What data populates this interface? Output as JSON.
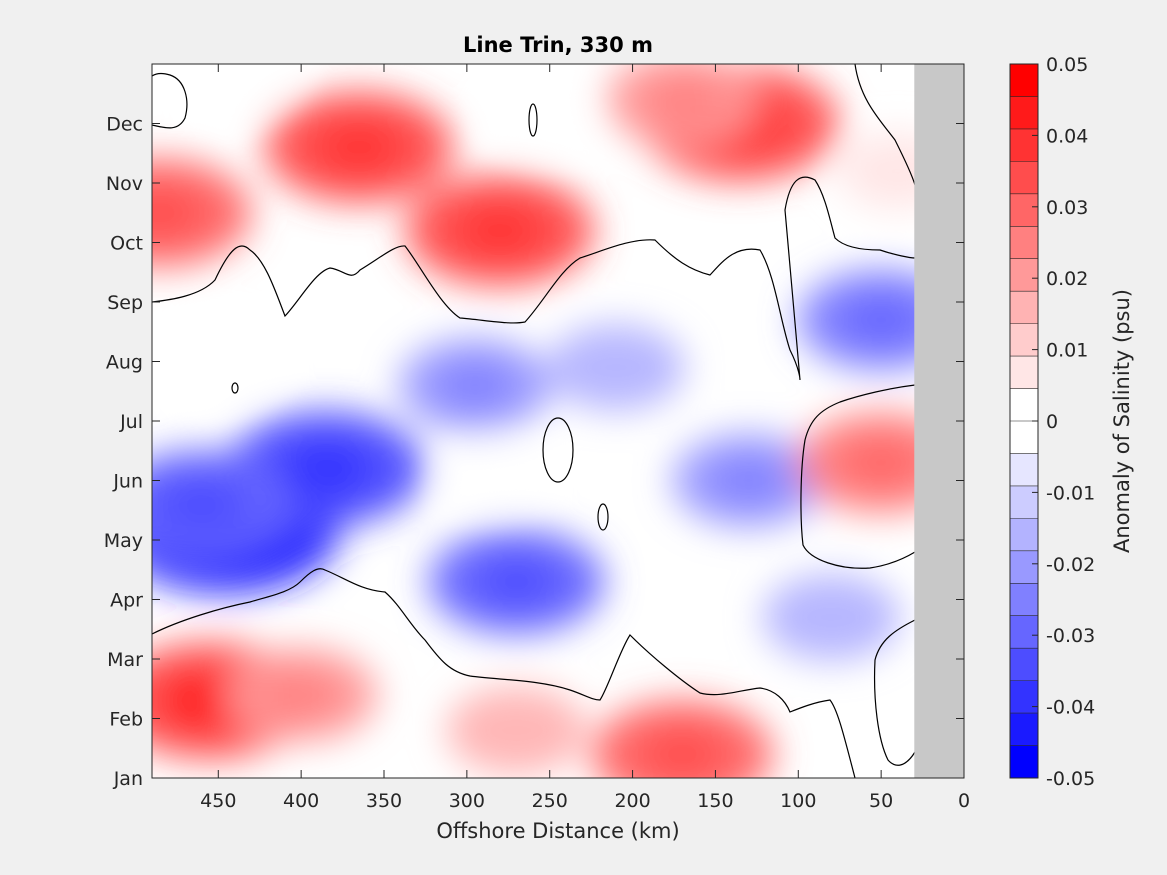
{
  "chart_data": {
    "type": "contour",
    "title": "Line Trin, 330 m",
    "xlabel": "Offshore Distance (km)",
    "ylabel": "",
    "x_reversed": true,
    "xlim": [
      0,
      490
    ],
    "ylim": [
      1,
      13
    ],
    "x_ticks": [
      450,
      400,
      350,
      300,
      250,
      200,
      150,
      100,
      50,
      0
    ],
    "y_ticks": [
      {
        "value": 1,
        "label": "Jan"
      },
      {
        "value": 2,
        "label": "Feb"
      },
      {
        "value": 3,
        "label": "Mar"
      },
      {
        "value": 4,
        "label": "Apr"
      },
      {
        "value": 5,
        "label": "May"
      },
      {
        "value": 6,
        "label": "Jun"
      },
      {
        "value": 7,
        "label": "Jul"
      },
      {
        "value": 8,
        "label": "Aug"
      },
      {
        "value": 9,
        "label": "Sep"
      },
      {
        "value": 10,
        "label": "Oct"
      },
      {
        "value": 11,
        "label": "Nov"
      },
      {
        "value": 12,
        "label": "Dec"
      }
    ],
    "no_data_region_km": [
      0,
      30
    ],
    "no_data_color": "#c8c8c8",
    "zero_contour": true,
    "colorbar": {
      "label": "Anomaly of Salinity (psu)",
      "range": [
        -0.05,
        0.05
      ],
      "levels": 20,
      "tick_labels": [
        "0.05",
        "0.04",
        "0.03",
        "0.02",
        "0.01",
        "0",
        "-0.01",
        "-0.02",
        "-0.03",
        "-0.04",
        "-0.05"
      ],
      "colors": [
        "#0000ff",
        "#1a1aff",
        "#3333ff",
        "#4d4dff",
        "#6666ff",
        "#8080ff",
        "#9999ff",
        "#b3b3ff",
        "#ccccff",
        "#e6e6ff",
        "#ffffff",
        "#ffffff",
        "#ffe6e6",
        "#ffcccc",
        "#ffb3b3",
        "#ff9999",
        "#ff8080",
        "#ff6666",
        "#ff4d4d",
        "#ff3333",
        "#ff1a1a",
        "#ff0000"
      ]
    },
    "features": [
      {
        "x_km": 445,
        "month": 5.2,
        "value": -0.045
      },
      {
        "x_km": 385,
        "month": 6.2,
        "value": -0.035
      },
      {
        "x_km": 460,
        "month": 5.6,
        "value": -0.03
      },
      {
        "x_km": 270,
        "month": 4.3,
        "value": -0.028
      },
      {
        "x_km": 295,
        "month": 7.6,
        "value": -0.02
      },
      {
        "x_km": 130,
        "month": 6.0,
        "value": -0.02
      },
      {
        "x_km": 210,
        "month": 7.9,
        "value": -0.015
      },
      {
        "x_km": 50,
        "month": 8.7,
        "value": -0.025
      },
      {
        "x_km": 80,
        "month": 3.7,
        "value": -0.015
      },
      {
        "x_km": 445,
        "month": 8.0,
        "value": 0.0
      },
      {
        "x_km": 285,
        "month": 6.1,
        "value": 0.0
      },
      {
        "x_km": 455,
        "month": 2.3,
        "value": 0.036
      },
      {
        "x_km": 400,
        "month": 2.4,
        "value": 0.02
      },
      {
        "x_km": 170,
        "month": 1.4,
        "value": 0.03
      },
      {
        "x_km": 270,
        "month": 1.8,
        "value": 0.016
      },
      {
        "x_km": 365,
        "month": 11.6,
        "value": 0.032
      },
      {
        "x_km": 280,
        "month": 10.2,
        "value": 0.032
      },
      {
        "x_km": 135,
        "month": 12.0,
        "value": 0.035
      },
      {
        "x_km": 170,
        "month": 12.4,
        "value": 0.02
      },
      {
        "x_km": 485,
        "month": 10.5,
        "value": 0.03
      },
      {
        "x_km": 50,
        "month": 6.3,
        "value": 0.025
      },
      {
        "x_km": 40,
        "month": 11.2,
        "value": 0.008
      },
      {
        "x_km": 435,
        "month": 12.8,
        "value": 0.0
      },
      {
        "x_km": 255,
        "month": 12.1,
        "value": 0.0
      }
    ]
  }
}
